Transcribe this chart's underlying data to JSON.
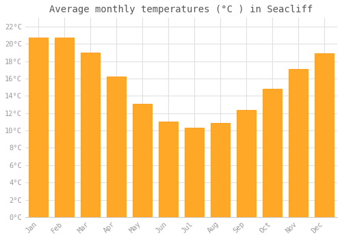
{
  "title": "Average monthly temperatures (°C ) in Seacliff",
  "months": [
    "Jan",
    "Feb",
    "Mar",
    "Apr",
    "May",
    "Jun",
    "Jul",
    "Aug",
    "Sep",
    "Oct",
    "Nov",
    "Dec"
  ],
  "values": [
    20.7,
    20.7,
    19.0,
    16.2,
    13.1,
    11.0,
    10.3,
    10.9,
    12.4,
    14.8,
    17.1,
    18.9
  ],
  "bar_color": "#FFA726",
  "bar_edge_color": "#FB8C00",
  "background_color": "#FFFFFF",
  "plot_bg_color": "#FFFFFF",
  "grid_color": "#E0E0E0",
  "text_color": "#999999",
  "ylim": [
    0,
    23
  ],
  "ytick_step": 2,
  "title_fontsize": 10,
  "tick_fontsize": 7.5,
  "font_family": "monospace"
}
